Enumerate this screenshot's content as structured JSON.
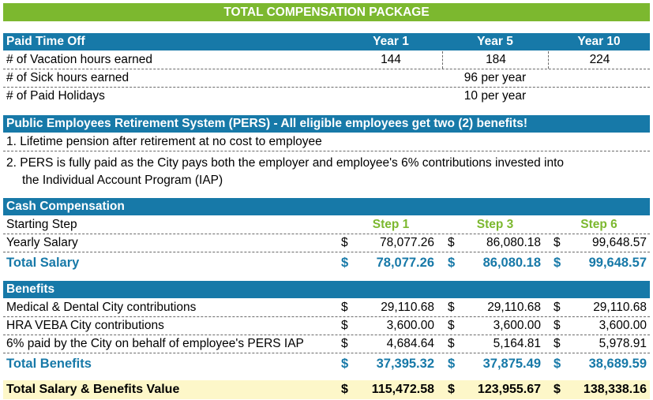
{
  "title": "TOTAL COMPENSATION PACKAGE",
  "pto": {
    "heading": "Paid Time Off",
    "year_headers": [
      "Year 1",
      "Year 5",
      "Year 10"
    ],
    "vacation": {
      "label": "# of Vacation hours earned",
      "values": [
        "144",
        "184",
        "224"
      ]
    },
    "sick": {
      "label": "# of Sick hours earned",
      "value": "96 per year"
    },
    "holidays": {
      "label": "# of Paid Holidays",
      "value": "10 per year"
    }
  },
  "pers": {
    "heading": "Public Employees Retirement System (PERS) - All eligible employees get two (2) benefits!",
    "item1": "1. Lifetime pension after retirement at no cost to employee",
    "item2_line1": "2.  PERS is fully paid as the City pays both the employer and employee's 6% contributions invested into",
    "item2_line2": "the Individual Account Program (IAP)"
  },
  "cash": {
    "heading": "Cash Compensation",
    "starting_step_label": "Starting Step",
    "steps": [
      "Step 1",
      "Step 3",
      "Step 6"
    ],
    "currency": "$",
    "yearly_salary": {
      "label": "Yearly Salary",
      "values": [
        "78,077.26",
        "86,080.18",
        "99,648.57"
      ]
    },
    "total_salary": {
      "label": "Total Salary",
      "values": [
        "78,077.26",
        "86,080.18",
        "99,648.57"
      ]
    }
  },
  "benefits": {
    "heading": "Benefits",
    "currency": "$",
    "rows": [
      {
        "label": "Medical & Dental City contributions",
        "values": [
          "29,110.68",
          "29,110.68",
          "29,110.68"
        ]
      },
      {
        "label": "HRA VEBA City contributions",
        "values": [
          "3,600.00",
          "3,600.00",
          "3,600.00"
        ]
      },
      {
        "label": "6% paid by the City on behalf of employee's PERS IAP",
        "values": [
          "4,684.64",
          "5,164.81",
          "5,978.91"
        ]
      }
    ],
    "total": {
      "label": "Total Benefits",
      "values": [
        "37,395.32",
        "37,875.49",
        "38,689.59"
      ]
    }
  },
  "grand_total": {
    "label": "Total Salary & Benefits Value",
    "values": [
      "115,472.58",
      "123,955.67",
      "138,338.16"
    ]
  },
  "colors": {
    "green": "#7cb82f",
    "blue": "#1779a8",
    "cream": "#fdf7c9"
  }
}
